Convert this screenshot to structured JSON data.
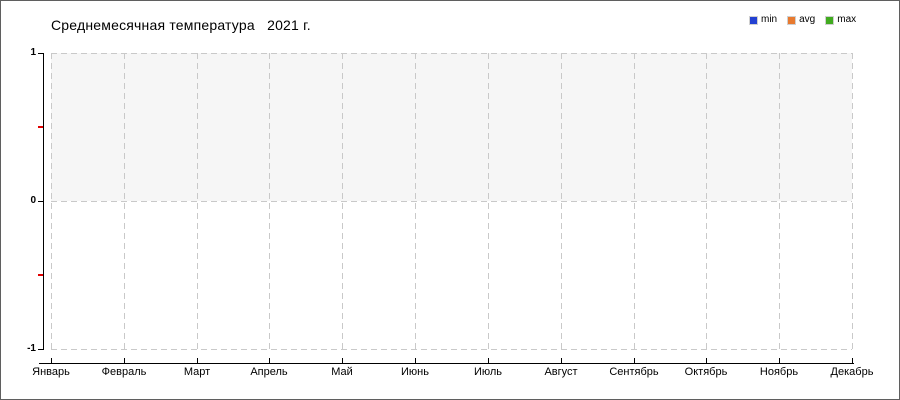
{
  "chart": {
    "title": "Среднемесячная температура   2021 г.",
    "legend": [
      {
        "label": "min",
        "color": "#2341d2"
      },
      {
        "label": "avg",
        "color": "#e87a2f"
      },
      {
        "label": "max",
        "color": "#41ab1f"
      }
    ],
    "y_axis": {
      "major_ticks": [
        {
          "label": "1",
          "value": 1
        },
        {
          "label": "0",
          "value": 0
        },
        {
          "label": "-1",
          "value": -1
        }
      ],
      "minor_tick_values": [
        0.5,
        -0.5
      ],
      "minor_tick_color": "#e00000",
      "range_min": -1,
      "range_max": 1
    },
    "x_axis": {
      "categories": [
        "Январь",
        "Февраль",
        "Март",
        "Апрель",
        "Май",
        "Июнь",
        "Июль",
        "Август",
        "Сентябрь",
        "Октябрь",
        "Ноябрь",
        "Декабрь"
      ]
    },
    "style": {
      "upper_band_fill": "#f6f6f6",
      "grid_color": "#c9c9c9",
      "axis_color": "#000000"
    }
  },
  "chart_data": {
    "type": "line",
    "title": "Среднемесячная температура 2021 г.",
    "xlabel": "",
    "ylabel": "",
    "ylim": [
      -1,
      1
    ],
    "grid": true,
    "legend_position": "top-right",
    "categories": [
      "Январь",
      "Февраль",
      "Март",
      "Апрель",
      "Май",
      "Июнь",
      "Июль",
      "Август",
      "Сентябрь",
      "Октябрь",
      "Ноябрь",
      "Декабрь"
    ],
    "series": [
      {
        "name": "min",
        "color": "#2341d2",
        "values": []
      },
      {
        "name": "avg",
        "color": "#e87a2f",
        "values": []
      },
      {
        "name": "max",
        "color": "#41ab1f",
        "values": []
      }
    ],
    "note": "chart area is empty — no data points are plotted"
  }
}
